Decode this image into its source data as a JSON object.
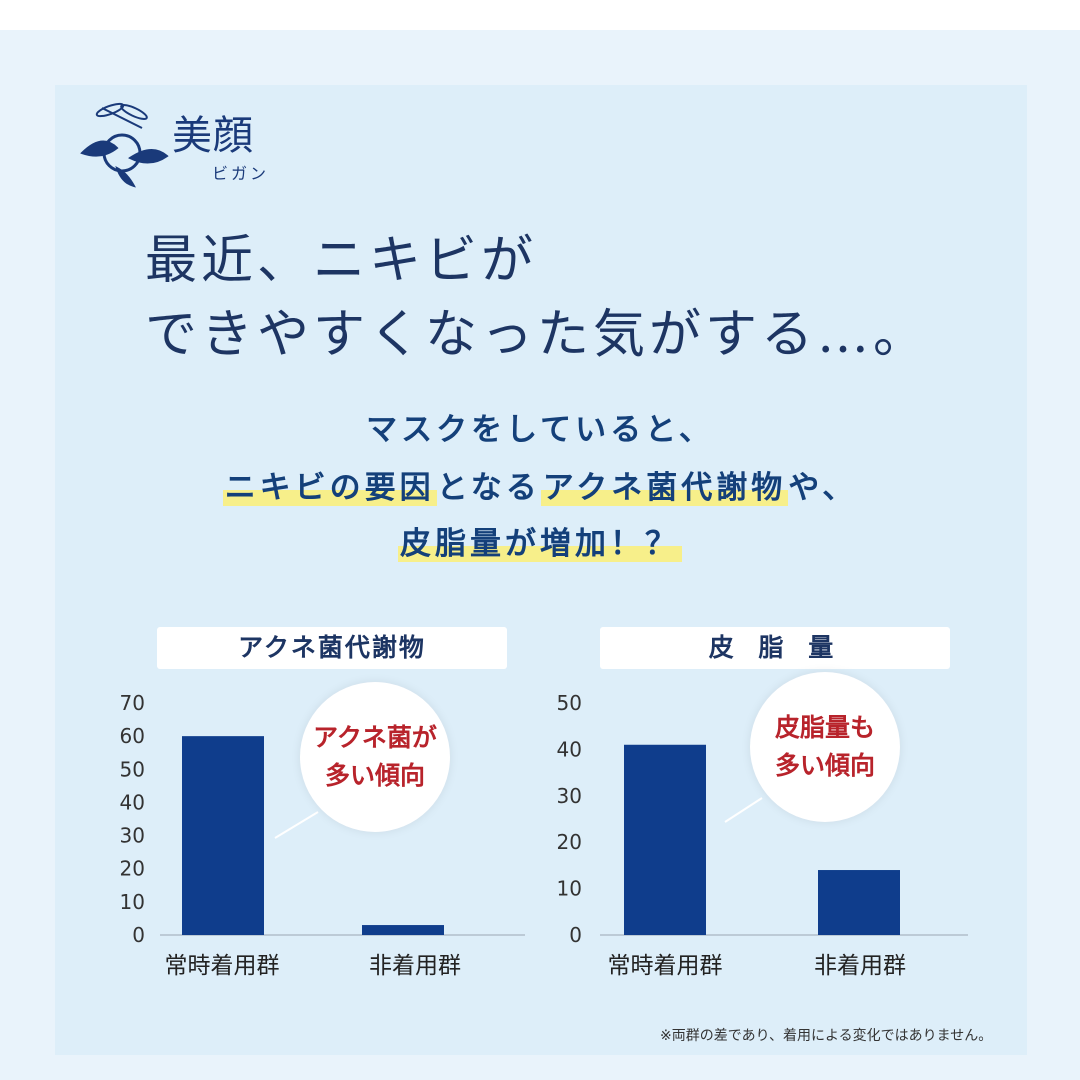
{
  "brand": {
    "kanji": "美顔",
    "kana": "ビガン"
  },
  "headline": {
    "line1": "最近、ニキビが",
    "line2": "できやすくなった気がする…。"
  },
  "subtitle": {
    "line1": "マスクをしていると、",
    "line2_a": "ニキビの要因",
    "line2_b": "となる",
    "line2_c": "アクネ菌代謝物",
    "line2_d": "や、",
    "line3_a": "皮脂量",
    "line3_b": "が",
    "line3_c": "増加！？"
  },
  "chart_data": [
    {
      "type": "bar",
      "title": "アクネ菌代謝物",
      "categories": [
        "常時着用群",
        "非着用群"
      ],
      "values": [
        60,
        3
      ],
      "ylim": [
        0,
        70
      ],
      "yticks": [
        0,
        10,
        20,
        30,
        40,
        50,
        60,
        70
      ],
      "annotation": [
        "アクネ菌が",
        "多い傾向"
      ],
      "bar_color": "#0f3d8c"
    },
    {
      "type": "bar",
      "title": "皮 脂 量",
      "categories": [
        "常時着用群",
        "非着用群"
      ],
      "values": [
        41,
        14
      ],
      "ylim": [
        0,
        50
      ],
      "yticks": [
        0,
        10,
        20,
        30,
        40,
        50
      ],
      "annotation": [
        "皮脂量も",
        "多い傾向"
      ],
      "bar_color": "#0f3d8c"
    }
  ],
  "note": "※両群の差であり、着用による変化ではありません。"
}
